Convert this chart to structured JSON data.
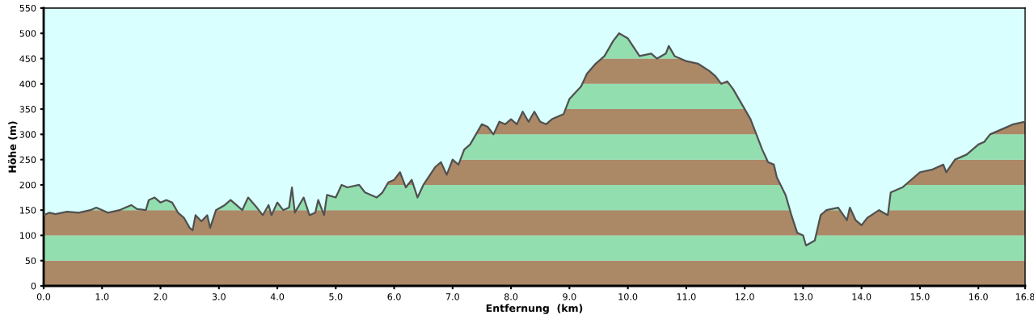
{
  "chart_data": {
    "type": "area",
    "xlabel": "Entfernung  (km)",
    "ylabel": "Höhe (m)",
    "x": [
      0.0,
      0.1,
      0.2,
      0.4,
      0.6,
      0.8,
      0.9,
      1.1,
      1.3,
      1.4,
      1.5,
      1.6,
      1.75,
      1.8,
      1.9,
      2.0,
      2.1,
      2.2,
      2.3,
      2.4,
      2.5,
      2.55,
      2.6,
      2.7,
      2.8,
      2.85,
      2.95,
      3.1,
      3.2,
      3.3,
      3.4,
      3.5,
      3.65,
      3.75,
      3.85,
      3.9,
      4.0,
      4.1,
      4.2,
      4.25,
      4.3,
      4.45,
      4.55,
      4.65,
      4.7,
      4.8,
      4.85,
      5.0,
      5.1,
      5.2,
      5.4,
      5.5,
      5.7,
      5.8,
      5.9,
      6.0,
      6.1,
      6.2,
      6.3,
      6.4,
      6.5,
      6.7,
      6.8,
      6.9,
      7.0,
      7.1,
      7.2,
      7.3,
      7.4,
      7.5,
      7.6,
      7.7,
      7.8,
      7.9,
      8.0,
      8.1,
      8.2,
      8.3,
      8.4,
      8.5,
      8.6,
      8.7,
      8.9,
      9.0,
      9.2,
      9.3,
      9.45,
      9.6,
      9.75,
      9.85,
      10.0,
      10.2,
      10.4,
      10.5,
      10.65,
      10.7,
      10.8,
      11.0,
      11.2,
      11.4,
      11.5,
      11.6,
      11.7,
      11.8,
      11.9,
      12.0,
      12.1,
      12.2,
      12.3,
      12.4,
      12.5,
      12.55,
      12.7,
      12.8,
      12.9,
      13.0,
      13.05,
      13.2,
      13.3,
      13.4,
      13.6,
      13.75,
      13.8,
      13.9,
      14.0,
      14.1,
      14.3,
      14.45,
      14.5,
      14.7,
      14.8,
      15.0,
      15.2,
      15.4,
      15.45,
      15.6,
      15.8,
      16.0,
      16.1,
      16.2,
      16.4,
      16.6,
      16.8
    ],
    "series": [
      {
        "color": "#505050",
        "values": [
          140,
          145,
          142,
          147,
          145,
          150,
          155,
          145,
          150,
          155,
          160,
          152,
          150,
          170,
          175,
          165,
          170,
          165,
          145,
          135,
          115,
          110,
          140,
          128,
          140,
          115,
          150,
          160,
          170,
          160,
          150,
          175,
          155,
          140,
          160,
          140,
          165,
          150,
          155,
          195,
          145,
          175,
          140,
          145,
          170,
          140,
          180,
          175,
          200,
          195,
          200,
          185,
          175,
          185,
          205,
          210,
          225,
          195,
          210,
          175,
          200,
          235,
          245,
          220,
          250,
          240,
          270,
          280,
          300,
          320,
          315,
          300,
          325,
          320,
          330,
          320,
          345,
          325,
          345,
          325,
          320,
          330,
          340,
          370,
          395,
          420,
          440,
          455,
          485,
          500,
          490,
          455,
          460,
          450,
          460,
          475,
          455,
          445,
          440,
          425,
          415,
          400,
          405,
          390,
          370,
          350,
          330,
          300,
          270,
          245,
          240,
          215,
          180,
          140,
          105,
          100,
          80,
          90,
          140,
          150,
          155,
          130,
          155,
          130,
          120,
          135,
          150,
          140,
          185,
          195,
          205,
          225,
          230,
          240,
          225,
          250,
          260,
          280,
          285,
          300,
          310,
          320,
          325
        ]
      }
    ],
    "bands": [
      {
        "axis": "y",
        "from": 0,
        "to": 50,
        "color": "#b8916a"
      },
      {
        "axis": "y",
        "from": 50,
        "to": 100,
        "color": "#9cf2bc"
      },
      {
        "axis": "y",
        "from": 100,
        "to": 150,
        "color": "#b8916a"
      },
      {
        "axis": "y",
        "from": 150,
        "to": 200,
        "color": "#9cf2bc"
      },
      {
        "axis": "y",
        "from": 200,
        "to": 250,
        "color": "#b8916a"
      },
      {
        "axis": "y",
        "from": 250,
        "to": 300,
        "color": "#9cf2bc"
      },
      {
        "axis": "y",
        "from": 300,
        "to": 350,
        "color": "#b8916a"
      },
      {
        "axis": "y",
        "from": 350,
        "to": 400,
        "color": "#9cf2bc"
      },
      {
        "axis": "y",
        "from": 400,
        "to": 450,
        "color": "#b8916a"
      },
      {
        "axis": "y",
        "from": 450,
        "to": 500,
        "color": "#9cf2bc"
      }
    ],
    "xlim": [
      0,
      16.8
    ],
    "ylim": [
      0,
      550
    ],
    "xticks": [
      {
        "value": 0,
        "label": "0.0"
      },
      {
        "value": 1,
        "label": "1.0"
      },
      {
        "value": 2,
        "label": "2.0"
      },
      {
        "value": 3,
        "label": "3.0"
      },
      {
        "value": 4,
        "label": "4.0"
      },
      {
        "value": 5,
        "label": "5.0"
      },
      {
        "value": 6,
        "label": "6.0"
      },
      {
        "value": 7,
        "label": "7.0"
      },
      {
        "value": 8,
        "label": "8.0"
      },
      {
        "value": 9,
        "label": "9.0"
      },
      {
        "value": 10,
        "label": "10.0"
      },
      {
        "value": 11,
        "label": "11.0"
      },
      {
        "value": 12,
        "label": "12.0"
      },
      {
        "value": 13,
        "label": "13.0"
      },
      {
        "value": 14,
        "label": "14.0"
      },
      {
        "value": 15,
        "label": "15.0"
      },
      {
        "value": 16,
        "label": "16.0"
      },
      16.8
    ],
    "yticks": [
      0,
      50,
      100,
      150,
      200,
      250,
      300,
      350,
      400,
      450,
      500,
      550
    ],
    "grid": false,
    "legend": false,
    "marker": "none",
    "line_style": "solid"
  }
}
